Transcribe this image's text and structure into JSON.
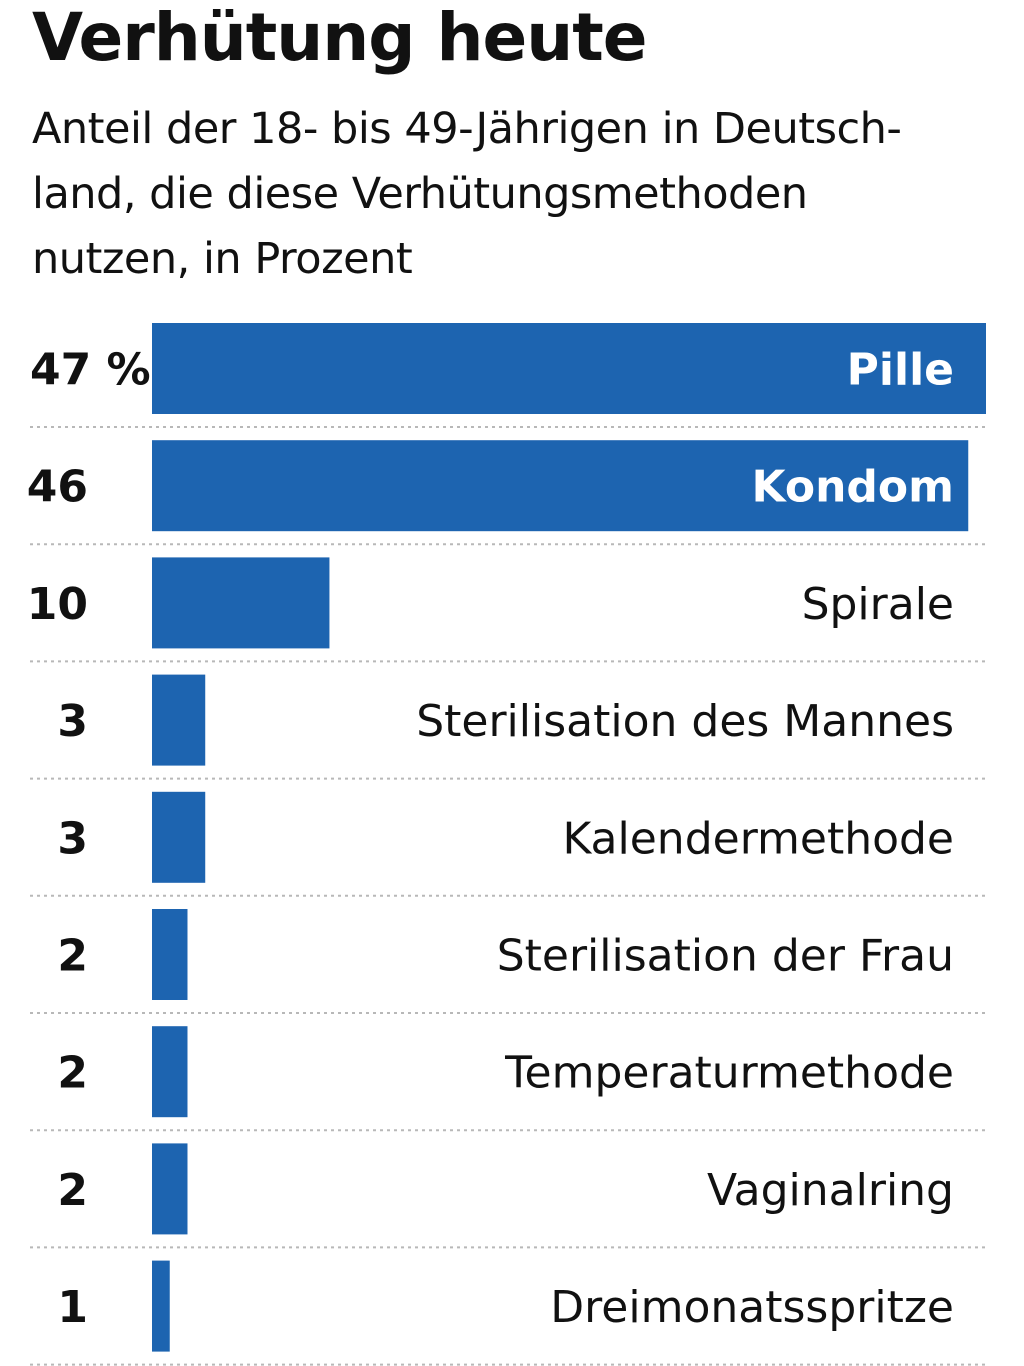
{
  "chart_data": {
    "type": "bar",
    "orientation": "horizontal",
    "title": "Verhütung heute",
    "subtitle": [
      "Anteil der 18- bis 49-Jährigen in Deutsch-",
      "land, die diese Verhütungsmethoden",
      "nutzen, in Prozent"
    ],
    "categories": [
      "Pille",
      "Kondom",
      "Spirale",
      "Sterilisation des Mannes",
      "Kalendermethode",
      "Sterilisation der Frau",
      "Temperaturmethode",
      "Vaginalring",
      "Dreimonatsspritze"
    ],
    "values": [
      47,
      46,
      10,
      3,
      3,
      2,
      2,
      2,
      1
    ],
    "value_labels": [
      "47 %",
      "46",
      "10",
      "3",
      "3",
      "2",
      "2",
      "2",
      "1"
    ],
    "xlim": [
      0,
      47
    ],
    "bar_color": "#1d64b0",
    "grid": "dotted row separators",
    "legend": "none"
  }
}
